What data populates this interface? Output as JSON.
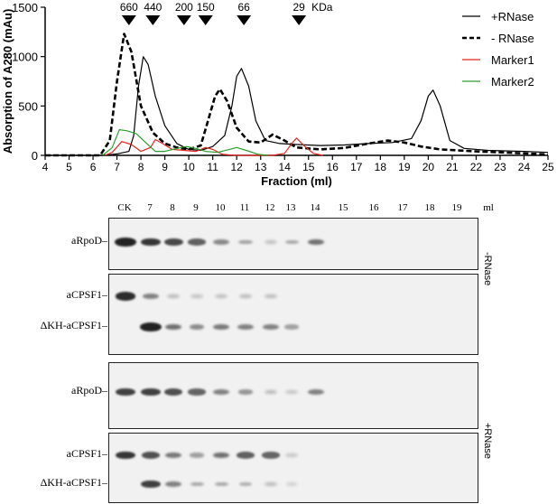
{
  "chart_data": {
    "type": "line",
    "xlabel": "Fraction (ml)",
    "ylabel": "Absorption of A280 (mAu)",
    "xlim": [
      4,
      25
    ],
    "ylim": [
      0,
      1500
    ],
    "xticks": [
      4,
      5,
      6,
      7,
      8,
      9,
      10,
      11,
      12,
      13,
      14,
      15,
      16,
      17,
      18,
      19,
      20,
      21,
      22,
      23,
      24,
      25
    ],
    "yticks": [
      0,
      500,
      1000,
      1500
    ],
    "grid": false,
    "legend_position": "top-right",
    "markers": [
      {
        "label": "660",
        "x": 7.5
      },
      {
        "label": "440",
        "x": 8.5
      },
      {
        "label": "200",
        "x": 9.8
      },
      {
        "label": "150",
        "x": 10.7
      },
      {
        "label": "66",
        "x": 12.3
      },
      {
        "label": "29",
        "x": 14.6
      }
    ],
    "marker_unit": "KDa",
    "series": [
      {
        "name": "+RNase",
        "color": "#000000",
        "style": "solid",
        "points": [
          [
            4,
            0
          ],
          [
            6.4,
            0
          ],
          [
            7,
            15
          ],
          [
            7.5,
            40
          ],
          [
            7.7,
            200
          ],
          [
            7.9,
            700
          ],
          [
            8.1,
            1000
          ],
          [
            8.3,
            920
          ],
          [
            8.6,
            600
          ],
          [
            9,
            300
          ],
          [
            9.5,
            120
          ],
          [
            10,
            60
          ],
          [
            10.5,
            50
          ],
          [
            11,
            90
          ],
          [
            11.5,
            200
          ],
          [
            11.8,
            500
          ],
          [
            12,
            800
          ],
          [
            12.2,
            880
          ],
          [
            12.5,
            700
          ],
          [
            12.8,
            350
          ],
          [
            13.2,
            150
          ],
          [
            13.8,
            120
          ],
          [
            14.5,
            110
          ],
          [
            15.5,
            100
          ],
          [
            16.5,
            105
          ],
          [
            17.5,
            120
          ],
          [
            18.5,
            130
          ],
          [
            19.3,
            170
          ],
          [
            19.7,
            350
          ],
          [
            20,
            600
          ],
          [
            20.2,
            660
          ],
          [
            20.5,
            500
          ],
          [
            20.9,
            150
          ],
          [
            21.5,
            70
          ],
          [
            22.5,
            50
          ],
          [
            24,
            40
          ],
          [
            25,
            30
          ]
        ]
      },
      {
        "name": "- RNase",
        "color": "#000000",
        "style": "dashed",
        "points": [
          [
            4,
            0
          ],
          [
            6.3,
            0
          ],
          [
            6.7,
            150
          ],
          [
            7,
            750
          ],
          [
            7.3,
            1230
          ],
          [
            7.6,
            1050
          ],
          [
            8,
            500
          ],
          [
            8.5,
            230
          ],
          [
            9,
            120
          ],
          [
            9.5,
            80
          ],
          [
            10,
            60
          ],
          [
            10.5,
            100
          ],
          [
            10.8,
            350
          ],
          [
            11.1,
            600
          ],
          [
            11.3,
            670
          ],
          [
            11.6,
            550
          ],
          [
            12,
            280
          ],
          [
            12.5,
            140
          ],
          [
            13,
            130
          ],
          [
            13.5,
            210
          ],
          [
            14,
            150
          ],
          [
            14.5,
            80
          ],
          [
            15.5,
            60
          ],
          [
            16.5,
            75
          ],
          [
            17.5,
            120
          ],
          [
            18.3,
            150
          ],
          [
            19,
            130
          ],
          [
            19.7,
            90
          ],
          [
            20.5,
            60
          ],
          [
            22,
            40
          ],
          [
            24,
            20
          ],
          [
            25,
            10
          ]
        ]
      },
      {
        "name": "Marker1",
        "color": "#e8251f",
        "style": "solid",
        "points": [
          [
            6.5,
            0
          ],
          [
            6.8,
            30
          ],
          [
            7.2,
            140
          ],
          [
            7.6,
            110
          ],
          [
            8,
            40
          ],
          [
            8.4,
            80
          ],
          [
            8.6,
            160
          ],
          [
            8.9,
            120
          ],
          [
            9.3,
            60
          ],
          [
            9.8,
            50
          ],
          [
            10.3,
            40
          ],
          [
            10.7,
            80
          ],
          [
            11,
            60
          ],
          [
            11.4,
            10
          ],
          [
            12,
            0
          ],
          [
            13.5,
            0
          ],
          [
            14,
            20
          ],
          [
            14.3,
            120
          ],
          [
            14.5,
            175
          ],
          [
            14.8,
            100
          ],
          [
            15.2,
            20
          ],
          [
            15.6,
            0
          ]
        ]
      },
      {
        "name": "Marker2",
        "color": "#2e9e2e",
        "style": "solid",
        "points": [
          [
            6.4,
            0
          ],
          [
            6.8,
            80
          ],
          [
            7.1,
            260
          ],
          [
            7.4,
            250
          ],
          [
            7.8,
            220
          ],
          [
            8.2,
            130
          ],
          [
            8.6,
            40
          ],
          [
            9,
            40
          ],
          [
            9.5,
            70
          ],
          [
            9.9,
            90
          ],
          [
            10.3,
            70
          ],
          [
            10.7,
            40
          ],
          [
            11.2,
            30
          ],
          [
            11.7,
            60
          ],
          [
            12,
            80
          ],
          [
            12.4,
            50
          ],
          [
            12.9,
            10
          ],
          [
            13.3,
            0
          ]
        ]
      }
    ]
  },
  "blot": {
    "lanes": [
      "CK",
      "7",
      "8",
      "9",
      "10",
      "11",
      "12",
      "13",
      "14",
      "15",
      "16",
      "17",
      "18",
      "19"
    ],
    "lane_unit": "ml",
    "panels": [
      {
        "labels": [
          "aRpoD"
        ],
        "condition": "",
        "intensities": [
          [
            0.95,
            0.85,
            0.75,
            0.62,
            0.42,
            0.28,
            0.15,
            0.25,
            0.55,
            0,
            0,
            0,
            0,
            0
          ]
        ]
      },
      {
        "labels": [
          "aCPSF1",
          "ΔKH-aCPSF1"
        ],
        "condition": "-RNase",
        "intensities": [
          [
            0.9,
            0.45,
            0.18,
            0.12,
            0.15,
            0.18,
            0.16,
            0,
            0,
            0,
            0,
            0,
            0,
            0
          ],
          [
            0,
            0.95,
            0.55,
            0.4,
            0.5,
            0.45,
            0.45,
            0.3,
            0,
            0,
            0,
            0,
            0,
            0
          ]
        ]
      },
      {
        "labels": [
          "aRpoD"
        ],
        "condition": "",
        "intensities": [
          [
            0.8,
            0.8,
            0.72,
            0.6,
            0.45,
            0.35,
            0.18,
            0.1,
            0.45,
            0,
            0,
            0,
            0,
            0
          ]
        ]
      },
      {
        "labels": [
          "aCPSF1",
          "ΔKH-aCPSF1"
        ],
        "condition": "+RNase",
        "intensities": [
          [
            0.85,
            0.7,
            0.5,
            0.3,
            0.55,
            0.62,
            0.6,
            0.1,
            0,
            0,
            0,
            0,
            0,
            0
          ],
          [
            0,
            0.8,
            0.45,
            0.25,
            0.25,
            0.22,
            0.18,
            0.05,
            0,
            0,
            0,
            0,
            0,
            0
          ]
        ]
      }
    ]
  }
}
